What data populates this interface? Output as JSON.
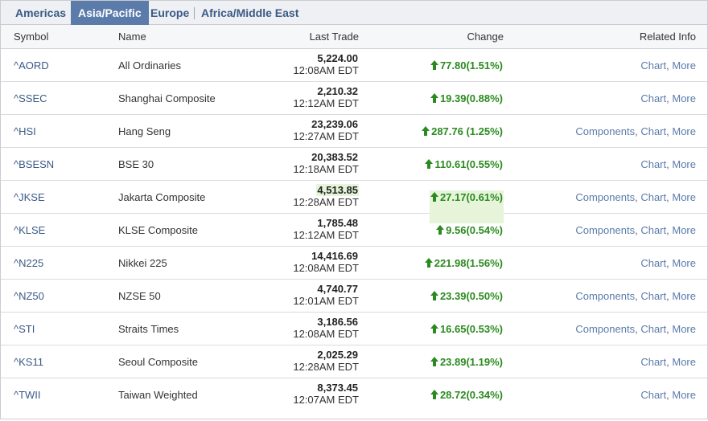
{
  "tabs": [
    {
      "label": "Americas",
      "active": false
    },
    {
      "label": "Asia/Pacific",
      "active": true
    },
    {
      "label": "Europe",
      "active": false
    },
    {
      "label": "Africa/Middle East",
      "active": false
    }
  ],
  "columns": {
    "symbol": "Symbol",
    "name": "Name",
    "last_trade": "Last Trade",
    "change": "Change",
    "related": "Related Info"
  },
  "links": {
    "components": "Components",
    "chart": "Chart",
    "more": "More",
    "separator": ","
  },
  "colors": {
    "tab_active_bg": "#5b7bab",
    "positive_change": "#2b8a1f",
    "link": "#5b7bab",
    "highlight": "#e6f5da"
  },
  "rows": [
    {
      "symbol": "^AORD",
      "name": "All Ordinaries",
      "price": "5,224.00",
      "time": "12:08AM EDT",
      "change": "77.80(1.51%)",
      "direction": "up",
      "components": false,
      "highlight": false
    },
    {
      "symbol": "^SSEC",
      "name": "Shanghai Composite",
      "price": "2,210.32",
      "time": "12:12AM EDT",
      "change": "19.39(0.88%)",
      "direction": "up",
      "components": false,
      "highlight": false
    },
    {
      "symbol": "^HSI",
      "name": "Hang Seng",
      "price": "23,239.06",
      "time": "12:27AM EDT",
      "change": "287.76 (1.25%)",
      "direction": "up",
      "components": true,
      "highlight": false
    },
    {
      "symbol": "^BSESN",
      "name": "BSE 30",
      "price": "20,383.52",
      "time": "12:18AM EDT",
      "change": "110.61(0.55%)",
      "direction": "up",
      "components": false,
      "highlight": false
    },
    {
      "symbol": "^JKSE",
      "name": "Jakarta Composite",
      "price": "4,513.85",
      "time": "12:28AM EDT",
      "change": "27.17(0.61%)",
      "direction": "up",
      "components": true,
      "highlight": true
    },
    {
      "symbol": "^KLSE",
      "name": "KLSE Composite",
      "price": "1,785.48",
      "time": "12:12AM EDT",
      "change": "9.56(0.54%)",
      "direction": "up",
      "components": true,
      "highlight": false
    },
    {
      "symbol": "^N225",
      "name": "Nikkei 225",
      "price": "14,416.69",
      "time": "12:08AM EDT",
      "change": "221.98(1.56%)",
      "direction": "up",
      "components": false,
      "highlight": false
    },
    {
      "symbol": "^NZ50",
      "name": "NZSE 50",
      "price": "4,740.77",
      "time": "12:01AM EDT",
      "change": "23.39(0.50%)",
      "direction": "up",
      "components": true,
      "highlight": false
    },
    {
      "symbol": "^STI",
      "name": "Straits Times",
      "price": "3,186.56",
      "time": "12:08AM EDT",
      "change": "16.65(0.53%)",
      "direction": "up",
      "components": true,
      "highlight": false
    },
    {
      "symbol": "^KS11",
      "name": "Seoul Composite",
      "price": "2,025.29",
      "time": "12:28AM EDT",
      "change": "23.89(1.19%)",
      "direction": "up",
      "components": false,
      "highlight": false
    },
    {
      "symbol": "^TWII",
      "name": "Taiwan Weighted",
      "price": "8,373.45",
      "time": "12:07AM EDT",
      "change": "28.72(0.34%)",
      "direction": "up",
      "components": false,
      "highlight": false
    }
  ]
}
